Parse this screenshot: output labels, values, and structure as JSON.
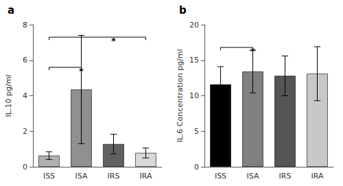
{
  "chart_data": [
    {
      "type": "bar",
      "title": "a",
      "categories": [
        "ISS",
        "ISA",
        "IRS",
        "IRA"
      ],
      "values": [
        0.63,
        4.35,
        1.28,
        0.78
      ],
      "errors": [
        0.22,
        3.05,
        0.55,
        0.28
      ],
      "colors": [
        "#b0b0b0",
        "#909090",
        "#606060",
        "#d8d8d8"
      ],
      "ylabel": "IL.10 pg/ml",
      "ylim": [
        0,
        8
      ],
      "yticks": [
        0,
        2,
        4,
        6,
        8
      ],
      "grid": false,
      "annotations": [
        {
          "text": "*",
          "from": "ISS",
          "to": "ISA",
          "y": 5.6
        },
        {
          "text": "*",
          "from": "ISS",
          "to": "IRA",
          "y": 7.3
        }
      ]
    },
    {
      "type": "bar",
      "title": "b",
      "categories": [
        "ISS",
        "ISA",
        "IRS",
        "IRA"
      ],
      "values": [
        11.6,
        13.4,
        12.8,
        13.1
      ],
      "errors": [
        2.5,
        3.0,
        2.8,
        3.8
      ],
      "colors": [
        "#000000",
        "#808080",
        "#555555",
        "#c8c8c8"
      ],
      "ylabel": "IL.6 Concentration pg/ml",
      "ylim": [
        0,
        20
      ],
      "yticks": [
        0,
        5,
        10,
        15,
        20
      ],
      "grid": false,
      "annotations": [
        {
          "text": "*",
          "from": "ISS",
          "to": "ISA",
          "y": 16.8
        }
      ]
    }
  ]
}
